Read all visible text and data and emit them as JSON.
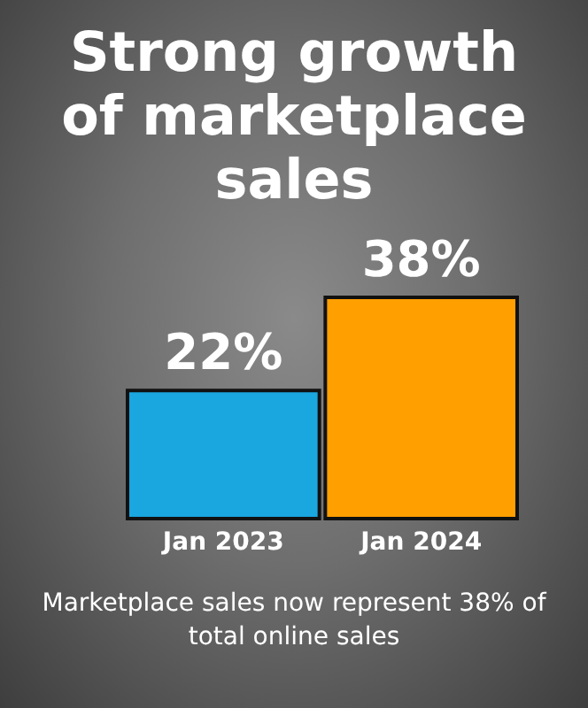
{
  "chart_data": {
    "type": "bar",
    "title": "Strong growth of marketplace sales",
    "categories": [
      "Jan 2023",
      "Jan 2024"
    ],
    "values": [
      22,
      38
    ],
    "value_labels": [
      "22%",
      "38%"
    ],
    "colors": [
      "#1aa6df",
      "#ff9f00"
    ],
    "grid": false,
    "annotations": [
      "Marketplace sales now represent 38% of total online sales"
    ]
  }
}
